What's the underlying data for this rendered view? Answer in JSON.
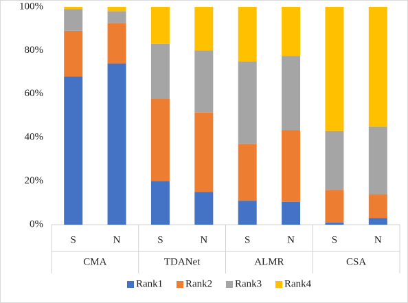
{
  "chart_data": {
    "type": "stacked_bar",
    "categories": [
      "S",
      "N",
      "S",
      "N",
      "S",
      "N",
      "S",
      "N"
    ],
    "groups": [
      "CMA",
      "TDANet",
      "ALMR",
      "CSA"
    ],
    "series": [
      {
        "name": "Rank1",
        "color": "#4472c4",
        "values": [
          68,
          74,
          20,
          15,
          11,
          10.5,
          1,
          3
        ]
      },
      {
        "name": "Rank2",
        "color": "#ed7d31",
        "values": [
          21,
          18.5,
          38,
          36.5,
          26,
          33,
          15,
          11
        ]
      },
      {
        "name": "Rank3",
        "color": "#a5a5a5",
        "values": [
          10,
          5.5,
          25,
          28.5,
          38,
          34,
          27,
          31
        ]
      },
      {
        "name": "Rank4",
        "color": "#ffc000",
        "values": [
          1,
          2,
          17,
          20,
          25,
          22.5,
          57,
          55
        ]
      }
    ],
    "ylim": [
      0,
      100
    ],
    "yticks": [
      {
        "value": 0,
        "label": "0%"
      },
      {
        "value": 20,
        "label": "20%"
      },
      {
        "value": 40,
        "label": "40%"
      },
      {
        "value": 60,
        "label": "60%"
      },
      {
        "value": 80,
        "label": "80%"
      },
      {
        "value": 100,
        "label": "100%"
      }
    ],
    "legend": "bottom"
  }
}
